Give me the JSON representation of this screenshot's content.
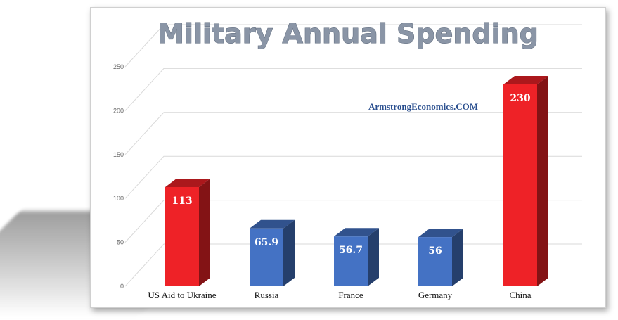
{
  "chart_data": {
    "type": "bar",
    "title": "Military Annual Spending",
    "watermark": "ArmstrongEconomics.COM",
    "categories": [
      "US Aid to Ukraine",
      "Russia",
      "France",
      "Germany",
      "China"
    ],
    "values": [
      113,
      65.9,
      56.7,
      56,
      230
    ],
    "data_labels": [
      "113",
      "65.9",
      "56.7",
      "56",
      "230"
    ],
    "bar_colors": [
      "#ee2227",
      "#4472c4",
      "#4472c4",
      "#4472c4",
      "#ee2227"
    ],
    "yticks": [
      0,
      50,
      100,
      150,
      200,
      250
    ],
    "ylim": [
      0,
      250
    ],
    "grid": true,
    "legend": "none",
    "xlabel": "",
    "ylabel": ""
  }
}
